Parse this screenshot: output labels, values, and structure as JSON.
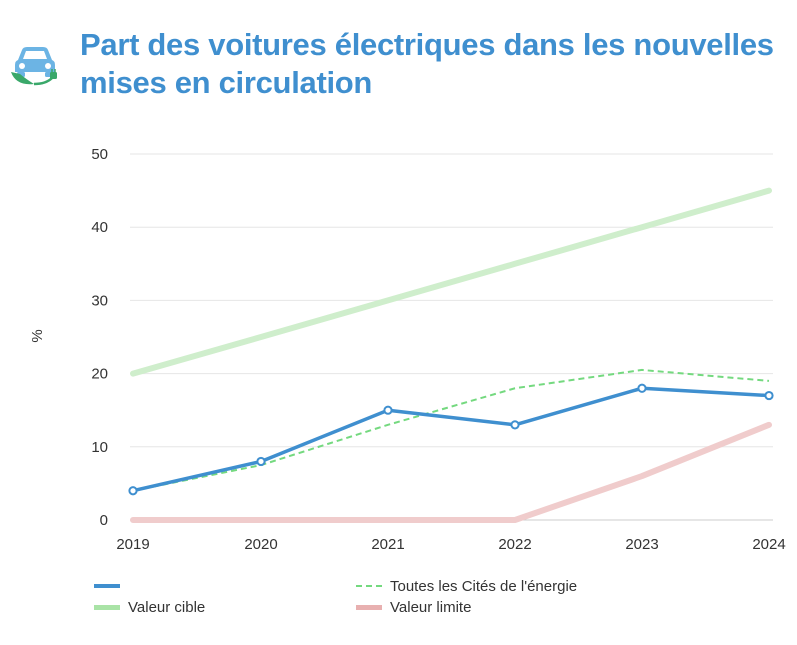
{
  "title": "Part des voitures électriques dans les nouvelles mises en circulation",
  "icon": "electric-car-icon",
  "colors": {
    "title": "#3f8fcf",
    "main": "#3f8fcf",
    "all_cities": "#74d97f",
    "target": "#cfeecc",
    "limit": "#f0cccc"
  },
  "chart_data": {
    "type": "line",
    "title": "Part des voitures électriques dans les nouvelles mises en circulation",
    "xlabel": "",
    "ylabel": "%",
    "categories": [
      "2019",
      "2020",
      "2021",
      "2022",
      "2023",
      "2024"
    ],
    "ylim": [
      0,
      50
    ],
    "yticks": [
      0,
      10,
      20,
      30,
      40,
      50
    ],
    "grid": true,
    "legend_position": "bottom",
    "series": [
      {
        "name": "",
        "style": "solid-markers",
        "values": [
          4,
          8,
          15,
          13,
          18,
          17
        ]
      },
      {
        "name": "Toutes les Cités de l'énergie",
        "style": "dashed",
        "values": [
          4,
          7.5,
          13,
          18,
          20.5,
          19
        ]
      },
      {
        "name": "Valeur cible",
        "style": "thick-light",
        "values": [
          20,
          25,
          30,
          35,
          40,
          45
        ]
      },
      {
        "name": "Valeur limite",
        "style": "thick-light",
        "values": [
          0,
          0,
          0,
          0,
          6,
          13
        ]
      }
    ]
  },
  "legend": [
    {
      "label": "",
      "series": 0
    },
    {
      "label": "Toutes les Cités de l'énergie",
      "series": 1
    },
    {
      "label": "Valeur cible",
      "series": 2
    },
    {
      "label": "Valeur limite",
      "series": 3
    }
  ]
}
